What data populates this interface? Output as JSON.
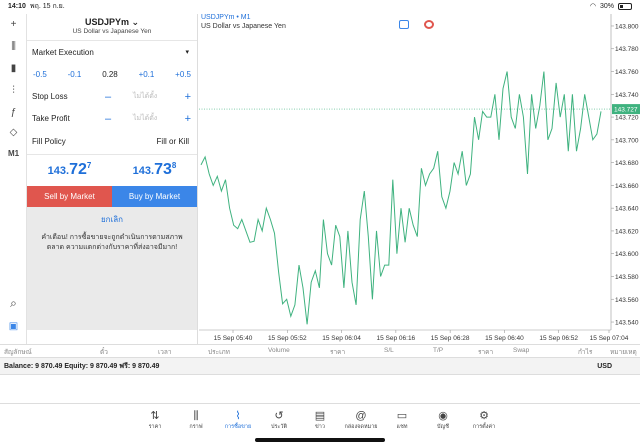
{
  "status": {
    "time": "14:10",
    "date": "พฤ. 15 ก.ย.",
    "battery": "30%"
  },
  "tools": [
    {
      "name": "crosshair-icon",
      "glyph": "+"
    },
    {
      "name": "candles-icon",
      "glyph": "⫼"
    },
    {
      "name": "bars-icon",
      "glyph": "▮"
    },
    {
      "name": "sliders-icon",
      "glyph": "⫶"
    },
    {
      "name": "function-icon",
      "glyph": "ƒ"
    },
    {
      "name": "shapes-icon",
      "glyph": "◇"
    },
    {
      "name": "timeframe-label",
      "glyph": "M1"
    },
    {
      "name": "zoom-icon",
      "glyph": "⌕"
    },
    {
      "name": "order-icon",
      "glyph": "▣"
    }
  ],
  "order": {
    "symbol": "USDJPYm",
    "description": "US Dollar vs Japanese Yen",
    "execution": "Market Execution",
    "volume": {
      "m2": "-0.5",
      "m1": "-0.1",
      "value": "0.28",
      "p1": "+0.1",
      "p2": "+0.5"
    },
    "stop_loss": {
      "label": "Stop Loss",
      "placeholder": "ไม่ได้ตั้ง"
    },
    "take_profit": {
      "label": "Take Profit",
      "placeholder": "ไม่ได้ตั้ง"
    },
    "fill_policy": {
      "label": "Fill Policy",
      "value": "Fill or Kill"
    },
    "bid": {
      "small": "143.",
      "large": "72",
      "sup": "7"
    },
    "ask": {
      "small": "143.",
      "large": "73",
      "sup": "8"
    },
    "sell_label": "Sell by Market",
    "buy_label": "Buy by Market",
    "cancel_label": "ยกเลิก",
    "warning": "คำเตือน! การซื้อขายจะถูกดำเนินการตามสภาพตลาด ความแตกต่างกับราคาที่ส่งอาจมีมาก!"
  },
  "chart_header": {
    "title": "USDJPYm • M1",
    "subtitle": "US Dollar vs Japanese Yen"
  },
  "chart_data": {
    "type": "line",
    "title": "USDJPYm • M1",
    "x_ticks": [
      "15 Sep 05:40",
      "15 Sep 05:52",
      "15 Sep 06:04",
      "15 Sep 06:16",
      "15 Sep 06:28",
      "15 Sep 06:40",
      "15 Sep 06:52",
      "15 Sep 07:04"
    ],
    "y_ticks": [
      "143.800",
      "143.780",
      "143.760",
      "143.740",
      "143.720",
      "143.700",
      "143.680",
      "143.660",
      "143.640",
      "143.620",
      "143.600",
      "143.580",
      "143.560",
      "143.540"
    ],
    "ylim": [
      143.533,
      143.807
    ],
    "current_price": "143.727",
    "values": [
      143.678,
      143.685,
      143.67,
      143.66,
      143.668,
      143.655,
      143.665,
      143.64,
      143.625,
      143.622,
      143.63,
      143.62,
      143.61,
      143.611,
      143.63,
      143.62,
      143.64,
      143.63,
      143.618,
      143.584,
      143.556,
      143.56,
      143.545,
      143.555,
      143.59,
      143.57,
      143.538,
      143.575,
      143.585,
      143.57,
      143.63,
      143.6,
      143.59,
      143.625,
      143.615,
      143.57,
      143.62,
      143.575,
      143.555,
      143.63,
      143.655,
      143.615,
      143.56,
      143.62,
      143.58,
      143.59,
      143.59,
      143.665,
      143.6,
      143.64,
      143.61,
      143.64,
      143.625,
      143.615,
      143.675,
      143.66,
      143.67,
      143.675,
      143.69,
      143.65,
      143.64,
      143.655,
      143.68,
      143.67,
      143.69,
      143.66,
      143.67,
      143.72,
      143.7,
      143.725,
      143.72,
      143.72,
      143.74,
      143.7,
      143.745,
      143.76,
      143.72,
      143.71,
      143.74,
      143.72,
      143.67,
      143.74,
      143.71,
      143.73,
      143.76,
      143.7,
      143.71,
      143.75,
      143.72,
      143.74,
      143.69,
      143.74,
      143.69,
      143.71,
      143.74,
      143.72,
      143.7,
      143.705,
      143.725
    ]
  },
  "trade_columns": [
    "สัญลักษณ์",
    "ตั๋ว",
    "เวลา",
    "ประเภท",
    "Volume",
    "ราคา",
    "S/L",
    "T/P",
    "ราคา",
    "Swap",
    "กำไร",
    "หมายเหตุ"
  ],
  "balance": {
    "text": "Balance: 9 870.49 Equity: 9 870.49 ฟรี: 9 870.49",
    "currency": "USD"
  },
  "nav": [
    {
      "name": "nav-quotes",
      "icon": "⇅",
      "label": "ราคา"
    },
    {
      "name": "nav-chart",
      "icon": "⫼",
      "label": "กราฟ"
    },
    {
      "name": "nav-trade",
      "icon": "⌇",
      "label": "การซื้อขาย",
      "active": true
    },
    {
      "name": "nav-history",
      "icon": "↺",
      "label": "ประวัติ"
    },
    {
      "name": "nav-news",
      "icon": "▤",
      "label": "ข่าว"
    },
    {
      "name": "nav-chat",
      "icon": "@",
      "label": "กล่องจดหมาย"
    },
    {
      "name": "nav-messages",
      "icon": "▭",
      "label": "แชท"
    },
    {
      "name": "nav-accounts",
      "icon": "◉",
      "label": "บัญชี"
    },
    {
      "name": "nav-settings",
      "icon": "⚙",
      "label": "การตั้งค่า"
    }
  ],
  "colors": {
    "accent": "#1e6fd9",
    "sell": "#e0564e",
    "buy": "#3b86e8",
    "line": "#3fb27f",
    "grid": "#e0e0e0"
  }
}
